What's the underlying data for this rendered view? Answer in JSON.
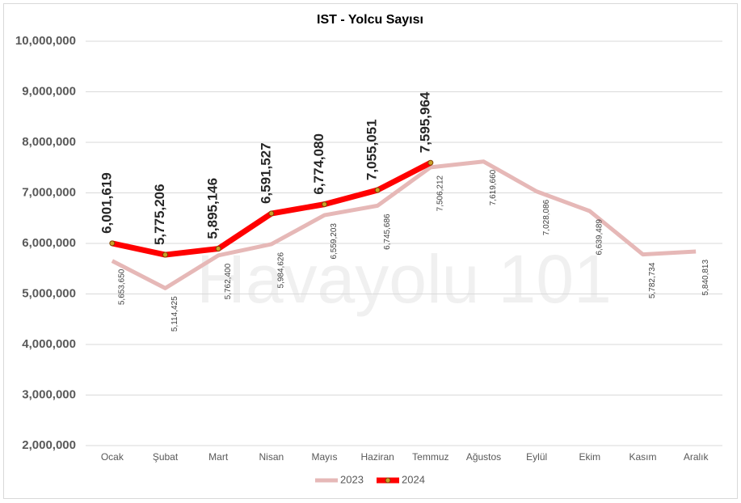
{
  "chart_data": {
    "type": "line",
    "title": "IST - Yolcu Sayısı",
    "watermark": "Havayolu 101",
    "categories": [
      "Ocak",
      "Şubat",
      "Mart",
      "Nisan",
      "Mayıs",
      "Haziran",
      "Temmuz",
      "Ağustos",
      "Eylül",
      "Ekim",
      "Kasım",
      "Aralık"
    ],
    "series": [
      {
        "name": "2023",
        "color": "#e6b8b7",
        "values": [
          5653650,
          5114425,
          5762400,
          5984626,
          6559203,
          6745686,
          7506212,
          7619660,
          7028086,
          6639489,
          5782734,
          5840813
        ],
        "value_labels": [
          "5,653,650",
          "5,114,425",
          "5,762,400",
          "5,984,626",
          "6,559,203",
          "6,745,686",
          "7,506,212",
          "7,619,660",
          "7,028,086",
          "6,639,489",
          "5,782,734",
          "5,840,813"
        ]
      },
      {
        "name": "2024",
        "color": "#ff0000",
        "values": [
          6001619,
          5775206,
          5895146,
          6591527,
          6774080,
          7055051,
          7595964,
          null,
          null,
          null,
          null,
          null
        ],
        "value_labels": [
          "6,001,619",
          "5,775,206",
          "5,895,146",
          "6,591,527",
          "6,774,080",
          "7,055,051",
          "7,595,964",
          null,
          null,
          null,
          null,
          null
        ]
      }
    ],
    "ylim": [
      2000000,
      10000000
    ],
    "yticks": [
      {
        "value": 2000000,
        "label": "2,000,000"
      },
      {
        "value": 3000000,
        "label": "3,000,000"
      },
      {
        "value": 4000000,
        "label": "4,000,000"
      },
      {
        "value": 5000000,
        "label": "5,000,000"
      },
      {
        "value": 6000000,
        "label": "6,000,000"
      },
      {
        "value": 7000000,
        "label": "7,000,000"
      },
      {
        "value": 8000000,
        "label": "8,000,000"
      },
      {
        "value": 9000000,
        "label": "9,000,000"
      },
      {
        "value": 10000000,
        "label": "10,000,000"
      }
    ],
    "grid": true,
    "legend": "bottom"
  }
}
